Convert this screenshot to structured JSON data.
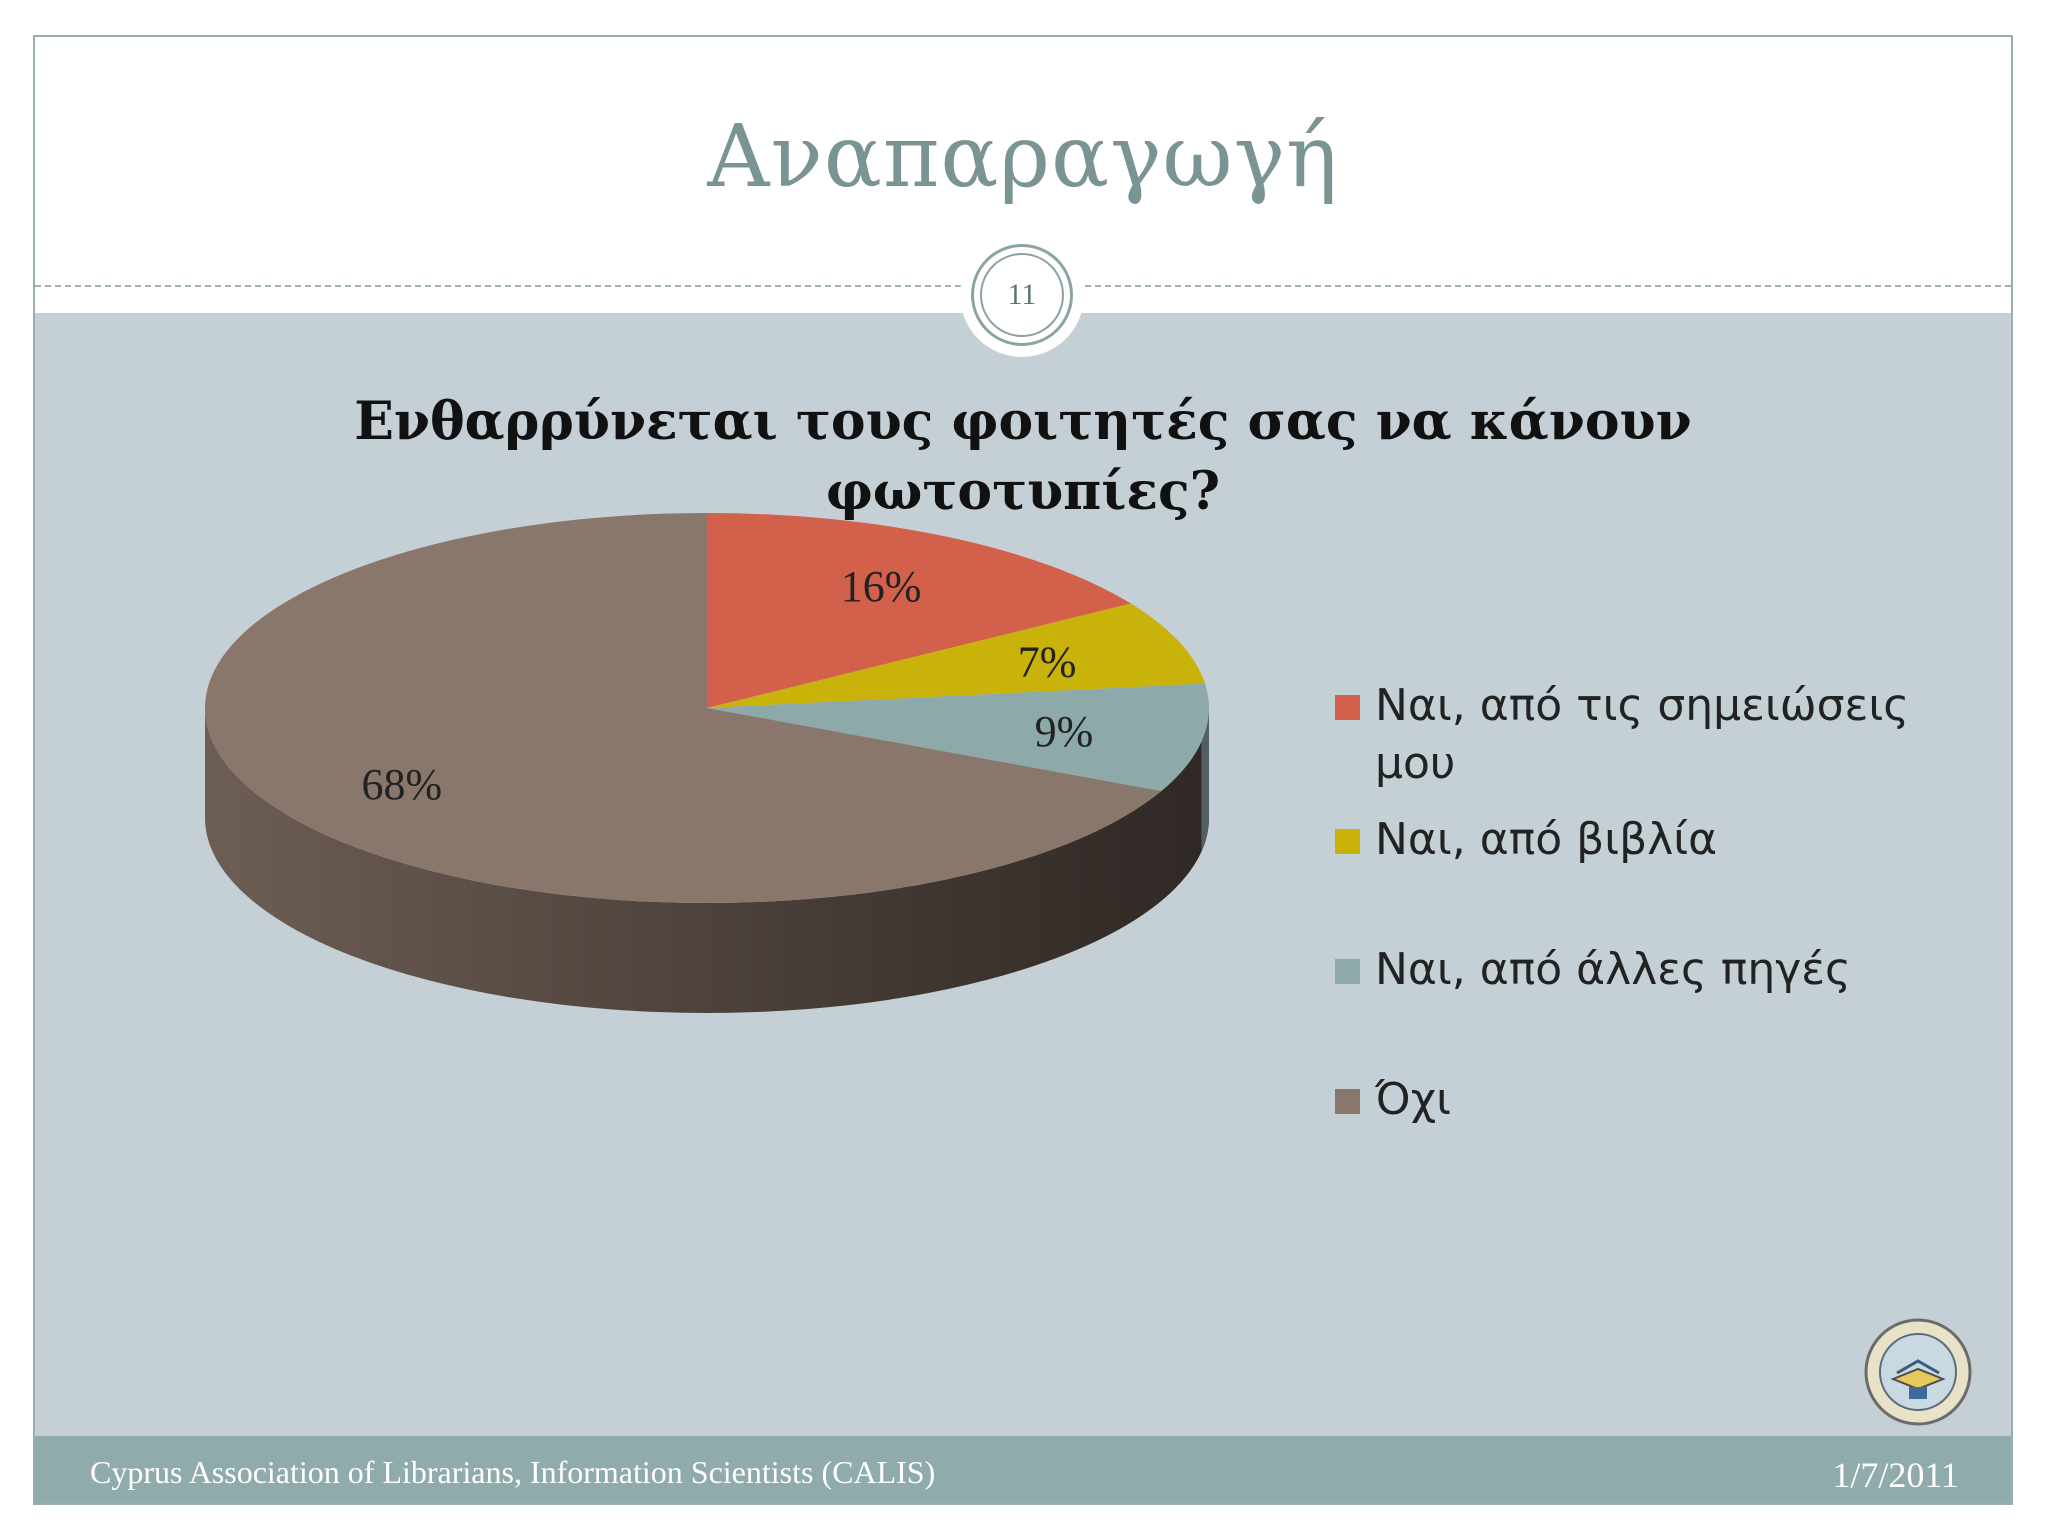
{
  "slide": {
    "title": "Αναπαραγωγή",
    "page_number": "11",
    "footer": {
      "org": "Cyprus Association of Librarians, Information Scientists (CALIS)",
      "date": "1/7/2011"
    },
    "logo_icon": "calis-logo-seal",
    "logo_text": "ΚΥΠΡΙΑΚΗ ΕΝΩΣΗ ΒΙΒΛΙΟΘΗΚΟΝΟΜΩΝ ΕΠΙΣΤΗΜΟΝΩΝ ΠΛΗΡΟΦΟΡΗΣΗΣ"
  },
  "chart_data": {
    "type": "pie",
    "style": "3d-exploded-none",
    "title_line1": "Ενθαρρύνεται τους φοιτητές σας να κάνουν",
    "title_line2": "φωτοτυπίες?",
    "legend_position": "right",
    "slices": [
      {
        "label_line1": "Ναι, από τις σημειώσεις",
        "label_line2": "μου",
        "value": 16,
        "display": "16%",
        "color": "#d2604a"
      },
      {
        "label_line1": "Ναι, από βιβλία",
        "label_line2": "",
        "value": 7,
        "display": "7%",
        "color": "#c9b30a"
      },
      {
        "label_line1": "Ναι, από άλλες πηγές",
        "label_line2": "",
        "value": 9,
        "display": "9%",
        "color": "#8ea9a9"
      },
      {
        "label_line1": "Όχι",
        "label_line2": "",
        "value": 68,
        "display": "68%",
        "color": "#8a776c"
      }
    ]
  }
}
